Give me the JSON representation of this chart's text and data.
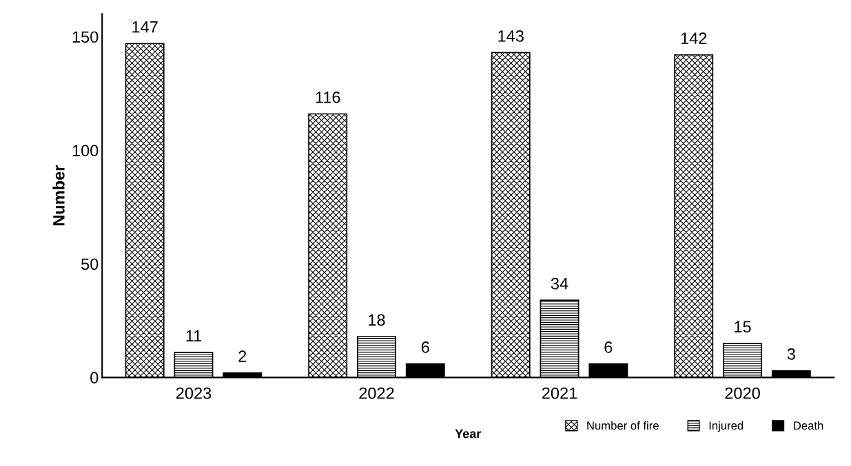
{
  "chart_data": {
    "type": "bar",
    "xlabel": "Year",
    "ylabel": "Number",
    "categories": [
      "2023",
      "2022",
      "2021",
      "2020"
    ],
    "series": [
      {
        "name": "Number of fire",
        "color": "#000000",
        "values": [
          147,
          116,
          143,
          142
        ]
      },
      {
        "name": "Injured",
        "color": "#000000",
        "values": [
          11,
          18,
          34,
          15
        ]
      },
      {
        "name": "Death",
        "color": "#000000",
        "values": [
          2,
          6,
          6,
          3
        ]
      }
    ],
    "ylim": [
      0,
      160
    ],
    "yticks": [
      0,
      50,
      100,
      150
    ],
    "data_labels": true,
    "grid": false,
    "legend": "bottom right"
  }
}
